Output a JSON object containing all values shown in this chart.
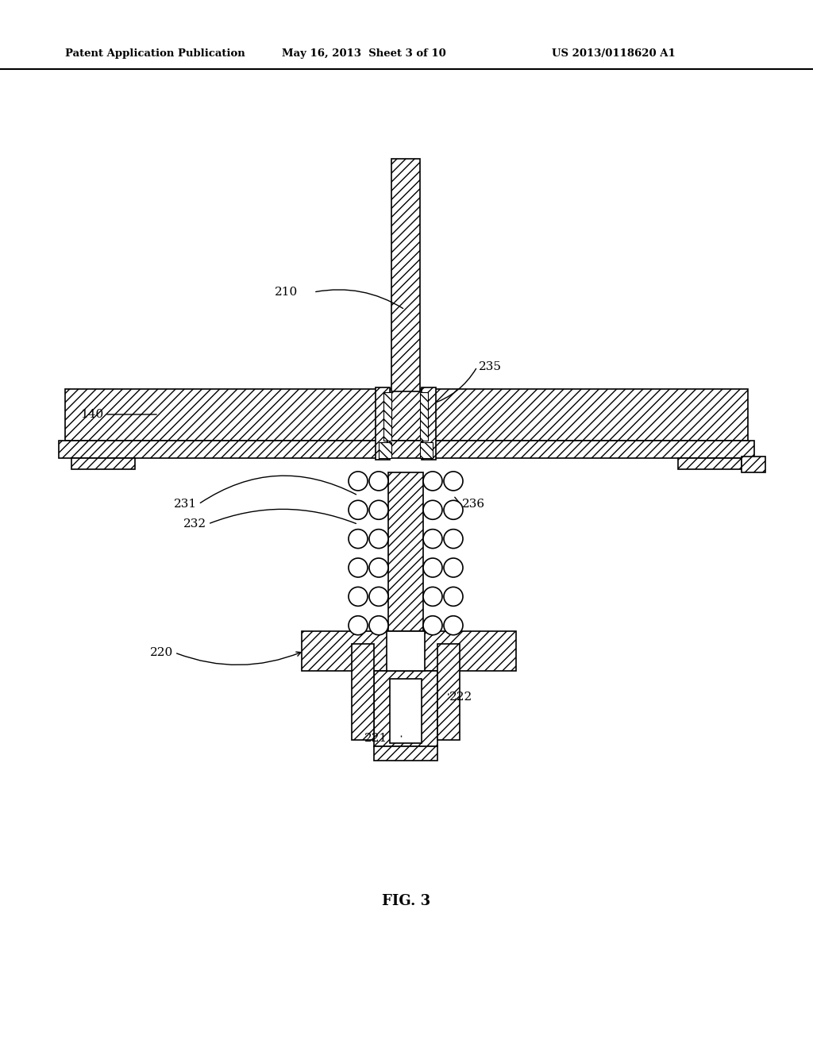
{
  "header_left": "Patent Application Publication",
  "header_mid": "May 16, 2013  Sheet 3 of 10",
  "header_right": "US 2013/0118620 A1",
  "fig_label": "FIG. 3",
  "bg_color": "#ffffff"
}
